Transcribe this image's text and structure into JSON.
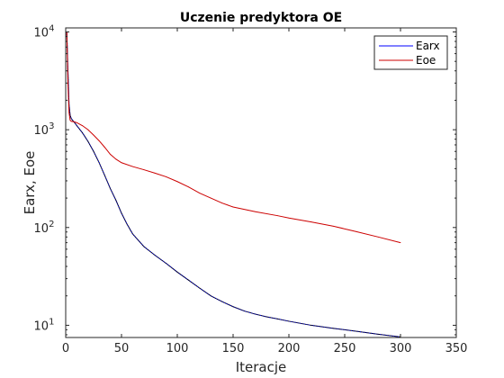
{
  "chart_data": {
    "type": "line",
    "title": "Uczenie predyktora OE",
    "xlabel": "Iteracje",
    "ylabel": "Earx, Eoe",
    "xlim": [
      0,
      350
    ],
    "ylim": [
      7.5,
      11000
    ],
    "yscale": "log",
    "grid": false,
    "legend_position": "top-right",
    "x_ticks": [
      {
        "value": 0,
        "label": "0"
      },
      {
        "value": 50,
        "label": "50"
      },
      {
        "value": 100,
        "label": "100"
      },
      {
        "value": 150,
        "label": "150"
      },
      {
        "value": 200,
        "label": "200"
      },
      {
        "value": 250,
        "label": "250"
      },
      {
        "value": 300,
        "label": "300"
      },
      {
        "value": 350,
        "label": "350"
      }
    ],
    "y_ticks": [
      {
        "value": 10,
        "base": "10",
        "exp": "1"
      },
      {
        "value": 100,
        "base": "10",
        "exp": "2"
      },
      {
        "value": 1000,
        "base": "10",
        "exp": "3"
      },
      {
        "value": 10000,
        "base": "10",
        "exp": "4"
      }
    ],
    "series": [
      {
        "name": "Earx",
        "color": "#000000",
        "overlay_color": "#0000ff",
        "points": [
          [
            1,
            10000
          ],
          [
            2,
            4000
          ],
          [
            3,
            1800
          ],
          [
            4,
            1400
          ],
          [
            5,
            1300
          ],
          [
            8,
            1180
          ],
          [
            10,
            1100
          ],
          [
            15,
            930
          ],
          [
            20,
            760
          ],
          [
            25,
            600
          ],
          [
            30,
            460
          ],
          [
            35,
            340
          ],
          [
            40,
            250
          ],
          [
            45,
            190
          ],
          [
            50,
            140
          ],
          [
            55,
            108
          ],
          [
            60,
            86
          ],
          [
            70,
            64
          ],
          [
            80,
            52
          ],
          [
            90,
            43
          ],
          [
            100,
            35
          ],
          [
            110,
            29
          ],
          [
            120,
            24
          ],
          [
            130,
            20
          ],
          [
            140,
            17.5
          ],
          [
            150,
            15.5
          ],
          [
            160,
            14
          ],
          [
            170,
            13
          ],
          [
            180,
            12.2
          ],
          [
            190,
            11.6
          ],
          [
            200,
            11
          ],
          [
            220,
            10
          ],
          [
            240,
            9.3
          ],
          [
            260,
            8.7
          ],
          [
            280,
            8.1
          ],
          [
            300,
            7.6
          ]
        ]
      },
      {
        "name": "Eoe",
        "color": "#cc0000",
        "points": [
          [
            1,
            10000
          ],
          [
            2,
            3000
          ],
          [
            3,
            1500
          ],
          [
            4,
            1250
          ],
          [
            5,
            1220
          ],
          [
            8,
            1200
          ],
          [
            10,
            1180
          ],
          [
            15,
            1100
          ],
          [
            20,
            1000
          ],
          [
            25,
            880
          ],
          [
            30,
            770
          ],
          [
            35,
            660
          ],
          [
            40,
            560
          ],
          [
            45,
            500
          ],
          [
            50,
            460
          ],
          [
            60,
            420
          ],
          [
            70,
            390
          ],
          [
            80,
            360
          ],
          [
            90,
            330
          ],
          [
            100,
            295
          ],
          [
            110,
            260
          ],
          [
            120,
            225
          ],
          [
            130,
            200
          ],
          [
            140,
            178
          ],
          [
            150,
            162
          ],
          [
            170,
            145
          ],
          [
            190,
            132
          ],
          [
            200,
            125
          ],
          [
            220,
            114
          ],
          [
            240,
            103
          ],
          [
            260,
            91
          ],
          [
            280,
            80
          ],
          [
            300,
            70
          ]
        ]
      }
    ]
  }
}
